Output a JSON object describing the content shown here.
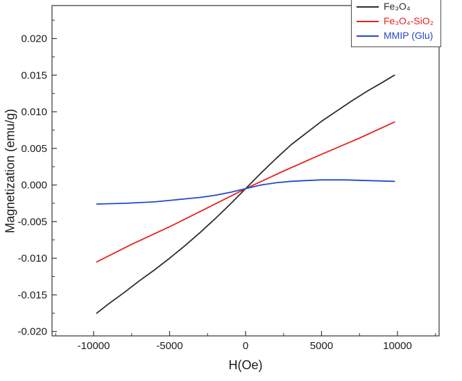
{
  "figure": {
    "background": "#ffffff",
    "frame_color": "#333333",
    "tick_label_color": "#1a1a1a"
  },
  "chart_data": {
    "type": "line",
    "title": "",
    "xlabel": "H(Oe)",
    "ylabel": "Magnetization (emu/g)",
    "xlim": [
      -12740,
      12740
    ],
    "ylim": [
      -0.0206,
      0.0245
    ],
    "x_ticks": [
      -10000,
      -5000,
      0,
      5000,
      10000
    ],
    "x_tick_labels": [
      "-10000",
      "-5000",
      "0",
      "5000",
      "10000"
    ],
    "x_minor_ticks": [
      -12500,
      -7500,
      -2500,
      2500,
      7500,
      12500
    ],
    "y_ticks": [
      -0.02,
      -0.015,
      -0.01,
      -0.005,
      0.0,
      0.005,
      0.01,
      0.015,
      0.02
    ],
    "y_tick_labels": [
      "-0.020",
      "-0.015",
      "-0.010",
      "-0.005",
      "0.000",
      "0.005",
      "0.010",
      "0.015",
      "0.020"
    ],
    "y_minor_ticks": [
      -0.0175,
      -0.0125,
      -0.0075,
      -0.0025,
      0.0025,
      0.0075,
      0.0125,
      0.0175,
      0.0225
    ],
    "grid": false,
    "legend_position": "top-right",
    "series": [
      {
        "id": "fe3o4",
        "name": "Fe₃O₄",
        "color": "#2d2d2d",
        "points": [
          [
            -9800,
            -0.0175
          ],
          [
            -9000,
            -0.0162
          ],
          [
            -8000,
            -0.0147
          ],
          [
            -7000,
            -0.0131
          ],
          [
            -6000,
            -0.0116
          ],
          [
            -5000,
            -0.01
          ],
          [
            -4000,
            -0.0083
          ],
          [
            -3000,
            -0.0065
          ],
          [
            -2000,
            -0.0046
          ],
          [
            -1000,
            -0.0026
          ],
          [
            0,
            -0.0005
          ],
          [
            1000,
            0.0016
          ],
          [
            2000,
            0.0036
          ],
          [
            3000,
            0.0055
          ],
          [
            4000,
            0.0071
          ],
          [
            5000,
            0.0087
          ],
          [
            6000,
            0.0101
          ],
          [
            7000,
            0.0115
          ],
          [
            8000,
            0.0128
          ],
          [
            9000,
            0.014
          ],
          [
            9800,
            0.015
          ]
        ]
      },
      {
        "id": "fe3o4-sio2",
        "name": "Fe₃O₄-SiO₂",
        "color": "#e8211d",
        "points": [
          [
            -9800,
            -0.0105
          ],
          [
            -7500,
            -0.0081
          ],
          [
            -5000,
            -0.0057
          ],
          [
            -2500,
            -0.0031
          ],
          [
            0,
            -0.0005
          ],
          [
            2500,
            0.0019
          ],
          [
            5000,
            0.0042
          ],
          [
            7500,
            0.0064
          ],
          [
            9800,
            0.0086
          ]
        ]
      },
      {
        "id": "mmip-glu",
        "name": "MMIP (Glu)",
        "color": "#2149c8",
        "points": [
          [
            -9800,
            -0.0026
          ],
          [
            -8000,
            -0.0025
          ],
          [
            -6000,
            -0.0023
          ],
          [
            -4000,
            -0.0019
          ],
          [
            -3000,
            -0.0017
          ],
          [
            -2000,
            -0.0014
          ],
          [
            -1000,
            -0.001
          ],
          [
            0,
            -0.0005
          ],
          [
            1000,
            0.0
          ],
          [
            2000,
            0.0003
          ],
          [
            3000,
            0.0005
          ],
          [
            4000,
            0.0006
          ],
          [
            5000,
            0.0007
          ],
          [
            6500,
            0.0007
          ],
          [
            8000,
            0.0006
          ],
          [
            9800,
            0.0005
          ]
        ]
      }
    ]
  }
}
